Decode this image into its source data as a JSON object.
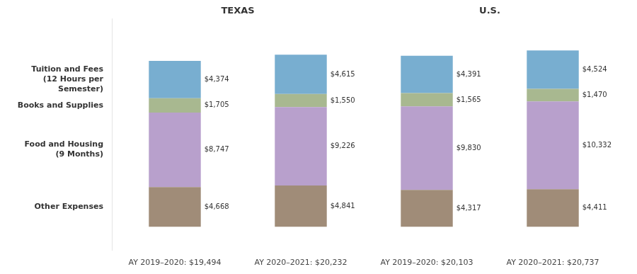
{
  "chart_data": {
    "type": "bar",
    "stacked": true,
    "categories": [
      "AY 2019–2020: $19,494",
      "AY 2020–2021: $20,232",
      "AY 2019–2020: $20,103",
      "AY 2020–2021: $20,737"
    ],
    "groups": [
      "TEXAS",
      "TEXAS",
      "U.S.",
      "U.S."
    ],
    "series": [
      {
        "name": "Other Expenses",
        "color": "#a08c78",
        "values": [
          4668,
          4841,
          4317,
          4411
        ],
        "value_labels": [
          "$4,668",
          "$4,841",
          "$4,317",
          "$4,411"
        ]
      },
      {
        "name": "Food and Housing\n(9 Months)",
        "color": "#b8a0cc",
        "values": [
          8747,
          9226,
          9830,
          10332
        ],
        "value_labels": [
          "$8,747",
          "$9,226",
          "$9,830",
          "$10,332"
        ]
      },
      {
        "name": "Books and Supplies",
        "color": "#a8b890",
        "values": [
          1705,
          1550,
          1565,
          1470
        ],
        "value_labels": [
          "$1,705",
          "$1,550",
          "$1,565",
          "$1,470"
        ]
      },
      {
        "name": "Tuition and Fees\n(12 Hours per\nSemester)",
        "color": "#78aed0",
        "values": [
          4374,
          4615,
          4391,
          4524
        ],
        "value_labels": [
          "$4,374",
          "$4,615",
          "$4,391",
          "$4,524"
        ]
      }
    ],
    "ylim": [
      -2800,
      24500
    ],
    "grid": false,
    "data_labels": true,
    "tick_labels": "x"
  }
}
